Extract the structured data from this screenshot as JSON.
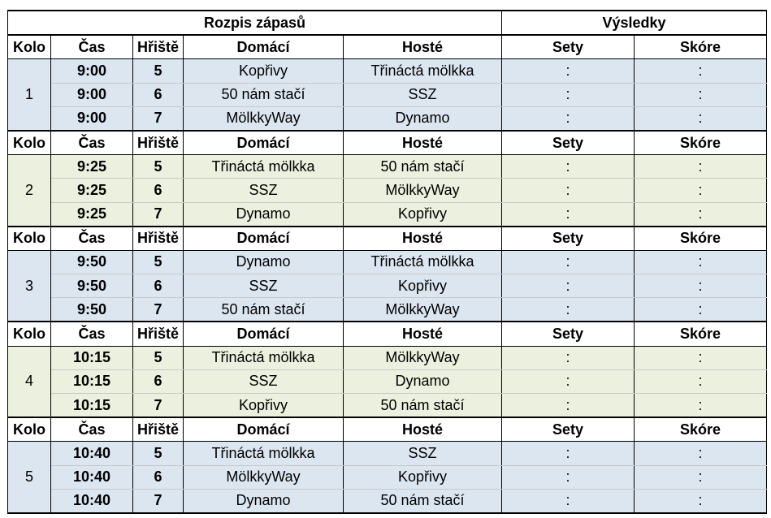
{
  "header": {
    "schedule_title": "Rozpis zápasů",
    "results_title": "Výsledky"
  },
  "columns": {
    "kolo": "Kolo",
    "cas": "Čas",
    "hriste": "Hřiště",
    "domaci": "Domácí",
    "hoste": "Hosté",
    "sety": "Sety",
    "skore": "Skóre"
  },
  "colors": {
    "blue_fill": "#dce6f1",
    "green_fill": "#ebf1de",
    "border": "#000000"
  },
  "rounds": [
    {
      "kolo": "1",
      "shade": "blue",
      "matches": [
        {
          "cas": "9:00",
          "hriste": "5",
          "domaci": "Kopřivy",
          "hoste": "Třináctá mölkka",
          "sety": ":",
          "skore": ":"
        },
        {
          "cas": "9:00",
          "hriste": "6",
          "domaci": "50 nám stačí",
          "hoste": "SSZ",
          "sety": ":",
          "skore": ":"
        },
        {
          "cas": "9:00",
          "hriste": "7",
          "domaci": "MölkkyWay",
          "hoste": "Dynamo",
          "sety": ":",
          "skore": ":"
        }
      ]
    },
    {
      "kolo": "2",
      "shade": "green",
      "matches": [
        {
          "cas": "9:25",
          "hriste": "5",
          "domaci": "Třináctá mölkka",
          "hoste": "50 nám stačí",
          "sety": ":",
          "skore": ":"
        },
        {
          "cas": "9:25",
          "hriste": "6",
          "domaci": "SSZ",
          "hoste": "MölkkyWay",
          "sety": ":",
          "skore": ":"
        },
        {
          "cas": "9:25",
          "hriste": "7",
          "domaci": "Dynamo",
          "hoste": "Kopřivy",
          "sety": ":",
          "skore": ":"
        }
      ]
    },
    {
      "kolo": "3",
      "shade": "blue",
      "matches": [
        {
          "cas": "9:50",
          "hriste": "5",
          "domaci": "Dynamo",
          "hoste": "Třináctá mölkka",
          "sety": ":",
          "skore": ":"
        },
        {
          "cas": "9:50",
          "hriste": "6",
          "domaci": "SSZ",
          "hoste": "Kopřivy",
          "sety": ":",
          "skore": ":"
        },
        {
          "cas": "9:50",
          "hriste": "7",
          "domaci": "50 nám stačí",
          "hoste": "MölkkyWay",
          "sety": ":",
          "skore": ":"
        }
      ]
    },
    {
      "kolo": "4",
      "shade": "green",
      "matches": [
        {
          "cas": "10:15",
          "hriste": "5",
          "domaci": "Třináctá mölkka",
          "hoste": "MölkkyWay",
          "sety": ":",
          "skore": ":"
        },
        {
          "cas": "10:15",
          "hriste": "6",
          "domaci": "SSZ",
          "hoste": "Dynamo",
          "sety": ":",
          "skore": ":"
        },
        {
          "cas": "10:15",
          "hriste": "7",
          "domaci": "Kopřivy",
          "hoste": "50 nám stačí",
          "sety": ":",
          "skore": ":"
        }
      ]
    },
    {
      "kolo": "5",
      "shade": "blue",
      "matches": [
        {
          "cas": "10:40",
          "hriste": "5",
          "domaci": "Třináctá mölkka",
          "hoste": "SSZ",
          "sety": ":",
          "skore": ":"
        },
        {
          "cas": "10:40",
          "hriste": "6",
          "domaci": "MölkkyWay",
          "hoste": "Kopřivy",
          "sety": ":",
          "skore": ":"
        },
        {
          "cas": "10:40",
          "hriste": "7",
          "domaci": "Dynamo",
          "hoste": "50 nám stačí",
          "sety": ":",
          "skore": ":"
        }
      ]
    }
  ]
}
